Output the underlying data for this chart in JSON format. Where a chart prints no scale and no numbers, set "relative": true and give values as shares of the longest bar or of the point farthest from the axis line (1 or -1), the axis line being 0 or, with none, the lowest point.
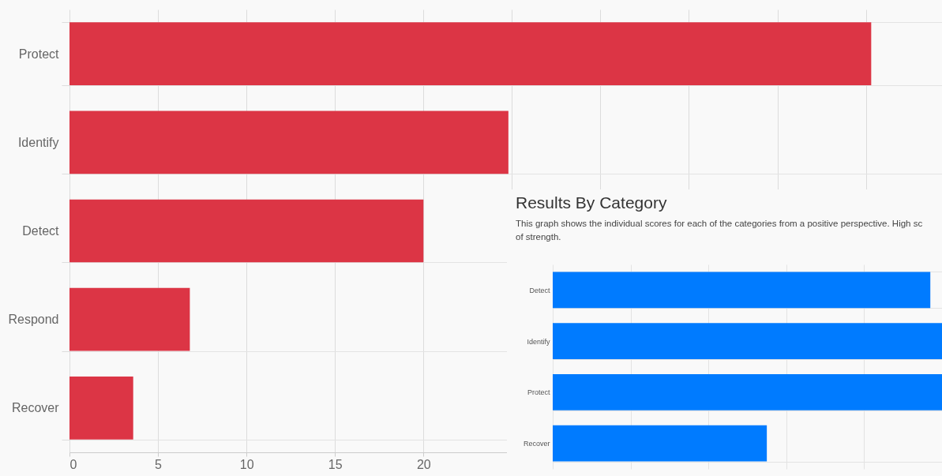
{
  "chart_data": [
    {
      "type": "bar",
      "orientation": "horizontal",
      "categories": [
        "Protect",
        "Identify",
        "Detect",
        "Respond",
        "Recover"
      ],
      "values": [
        45.3,
        24.8,
        20.0,
        6.8,
        3.6
      ],
      "color": "#dc3545",
      "xlim": [
        0,
        49.3
      ],
      "xticks": [
        0,
        5,
        10,
        15,
        20,
        {
          "value": 25,
          "label": null
        },
        {
          "value": 30,
          "label": null
        },
        {
          "value": 35,
          "label": null
        },
        {
          "value": 40,
          "label": null
        },
        {
          "value": 45,
          "label": null
        }
      ],
      "grid": true
    },
    {
      "type": "bar",
      "orientation": "horizontal",
      "title": "Results By Category",
      "subtitle": "This graph shows the individual scores for each of the categories from a positive perspective. High sc\nof strength.",
      "categories": [
        "Detect",
        "Identify",
        "Protect",
        "Recover"
      ],
      "values": [
        0.97,
        1,
        1,
        0.55
      ],
      "relative": true,
      "color": "#007bff",
      "grid": true
    }
  ]
}
